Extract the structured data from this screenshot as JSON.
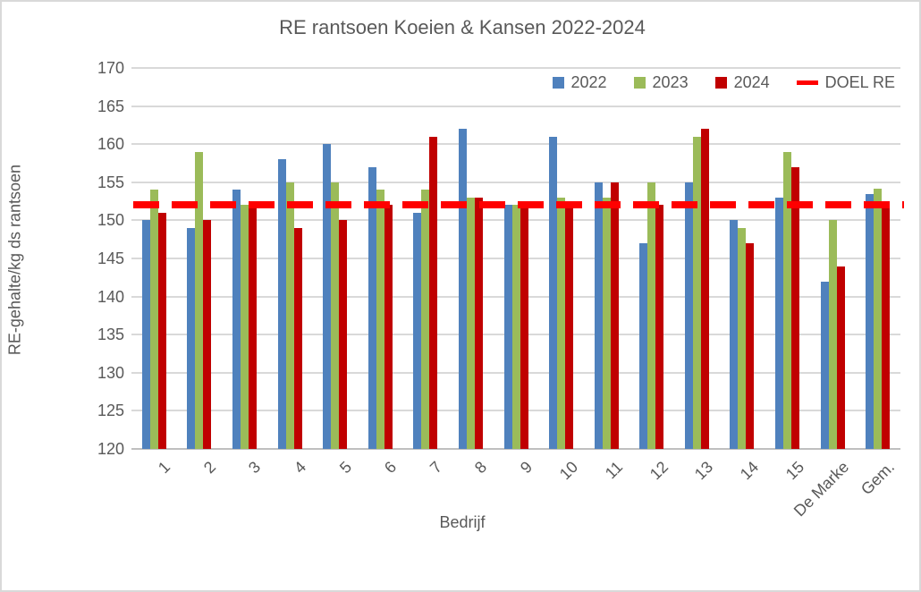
{
  "chart_data": {
    "type": "bar",
    "title": "RE rantsoen Koeien & Kansen 2022-2024",
    "xlabel": "Bedrijf",
    "ylabel": "RE-gehalte/kg ds rantsoen",
    "ylim": [
      120,
      170
    ],
    "yticks": [
      120,
      125,
      130,
      135,
      140,
      145,
      150,
      155,
      160,
      165,
      170
    ],
    "grid": true,
    "legend_position": "top-right",
    "categories": [
      "1",
      "2",
      "3",
      "4",
      "5",
      "6",
      "7",
      "8",
      "9",
      "10",
      "11",
      "12",
      "13",
      "14",
      "15",
      "De Marke",
      "Gem."
    ],
    "series": [
      {
        "name": "2022",
        "color": "#4f81bd",
        "values": [
          150,
          149,
          154,
          158,
          160,
          157,
          151,
          162,
          152,
          161,
          155,
          147,
          155,
          150,
          153,
          142,
          153.5
        ]
      },
      {
        "name": "2023",
        "color": "#9bbb59",
        "values": [
          154,
          159,
          152,
          155,
          155,
          154,
          154,
          153,
          152,
          153,
          153,
          155,
          161,
          149,
          159,
          150,
          154.2
        ]
      },
      {
        "name": "2024",
        "color": "#c00000",
        "values": [
          151,
          150,
          152,
          149,
          150,
          152,
          161,
          153,
          152,
          152,
          155,
          152,
          162,
          147,
          157,
          144,
          152.4
        ]
      }
    ],
    "target_line": {
      "name": "DOEL RE",
      "value": 152,
      "color": "#ff0000"
    }
  },
  "colors": {
    "text": "#595959",
    "gridline": "#d9d9d9",
    "axisline": "#bfbfbf",
    "background": "#ffffff",
    "border": "#d9d9d9"
  }
}
